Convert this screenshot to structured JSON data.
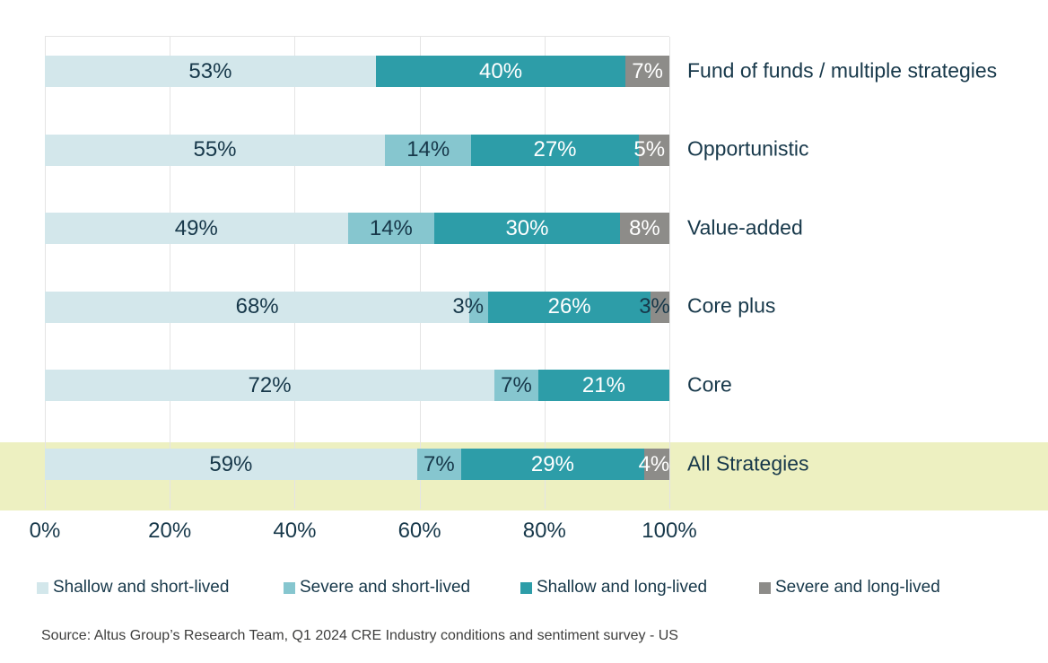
{
  "chart_data": {
    "type": "bar",
    "orientation": "horizontal",
    "stacked": true,
    "unit": "%",
    "categories": [
      "Fund of funds / multiple strategies",
      "Opportunistic",
      "Value-added",
      "Core plus",
      "Core",
      "All Strategies"
    ],
    "series": [
      {
        "name": "Shallow and short-lived",
        "values": [
          53,
          55,
          49,
          68,
          72,
          59
        ]
      },
      {
        "name": "Severe and short-lived",
        "values": [
          0,
          14,
          14,
          3,
          7,
          7
        ]
      },
      {
        "name": "Shallow and long-lived",
        "values": [
          40,
          27,
          30,
          26,
          21,
          29
        ]
      },
      {
        "name": "Severe and long-lived",
        "values": [
          7,
          5,
          8,
          3,
          0,
          4
        ]
      }
    ],
    "x_ticks": [
      "0%",
      "20%",
      "40%",
      "60%",
      "80%",
      "100%"
    ],
    "xlim": [
      0,
      100
    ],
    "grid": "vertical",
    "legend_position": "bottom",
    "highlighted_category": "All Strategies",
    "label_overrides": [
      {
        "category": 3,
        "series": 1,
        "dx": -12
      },
      {
        "category": 3,
        "series": 3,
        "color": "dark",
        "dx": -6
      },
      {
        "category": 1,
        "series": 3,
        "dx": -5
      },
      {
        "category": 5,
        "series": 3,
        "dx": -3
      }
    ]
  },
  "colors": {
    "series": [
      "#d3e7eb",
      "#86c6cf",
      "#2d9da8",
      "#8d8c89"
    ],
    "series_label": [
      "dark",
      "dark",
      "white",
      "white"
    ],
    "label_dark": "#17384a",
    "label_white": "#ffffff",
    "highlight_band": "#edf0c1",
    "gridline": "#e4e4e4",
    "axis_text": "#17384a",
    "category_text": "#17384a",
    "legend_text": "#17384a",
    "source_text": "#3e3e3d"
  },
  "source": "Source: Altus Group’s Research Team, Q1 2024 CRE Industry conditions and sentiment survey - US"
}
